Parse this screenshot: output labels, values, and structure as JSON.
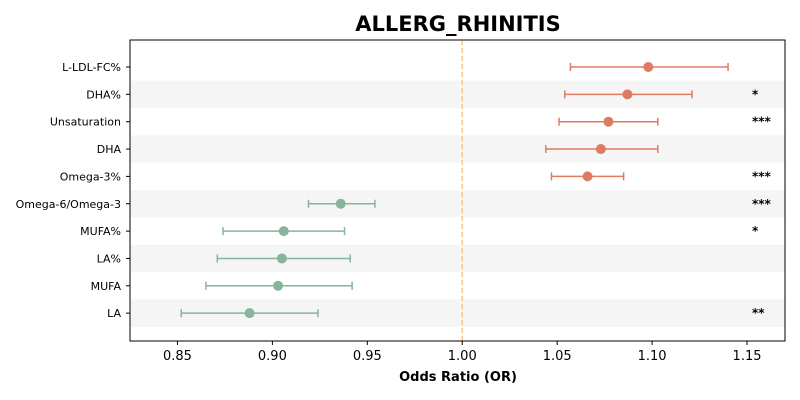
{
  "chart_data": {
    "type": "forest",
    "title": "ALLERG_RHINITIS",
    "xlabel": "Odds Ratio (OR)",
    "xlim": [
      0.825,
      1.17
    ],
    "xticks": [
      "0.85",
      "0.90",
      "0.95",
      "1.00",
      "1.05",
      "1.10",
      "1.15"
    ],
    "reference_line": 1.0,
    "colors": {
      "positive": "#e07b63",
      "negative": "#86b49c",
      "reference": "#f2c98a",
      "band": "#f5f5f5"
    },
    "rows": [
      {
        "label": "L-LDL-FC%",
        "or": 1.098,
        "lo": 1.057,
        "hi": 1.14,
        "sig": ""
      },
      {
        "label": "DHA%",
        "or": 1.087,
        "lo": 1.054,
        "hi": 1.121,
        "sig": "*"
      },
      {
        "label": "Unsaturation",
        "or": 1.077,
        "lo": 1.051,
        "hi": 1.103,
        "sig": "***"
      },
      {
        "label": "DHA",
        "or": 1.073,
        "lo": 1.044,
        "hi": 1.103,
        "sig": ""
      },
      {
        "label": "Omega-3%",
        "or": 1.066,
        "lo": 1.047,
        "hi": 1.085,
        "sig": "***"
      },
      {
        "label": "Omega-6/Omega-3",
        "or": 0.936,
        "lo": 0.919,
        "hi": 0.954,
        "sig": "***"
      },
      {
        "label": "MUFA%",
        "or": 0.906,
        "lo": 0.874,
        "hi": 0.938,
        "sig": "*"
      },
      {
        "label": "LA%",
        "or": 0.905,
        "lo": 0.871,
        "hi": 0.941,
        "sig": ""
      },
      {
        "label": "MUFA",
        "or": 0.903,
        "lo": 0.865,
        "hi": 0.942,
        "sig": ""
      },
      {
        "label": "LA",
        "or": 0.888,
        "lo": 0.852,
        "hi": 0.924,
        "sig": "**"
      }
    ]
  }
}
